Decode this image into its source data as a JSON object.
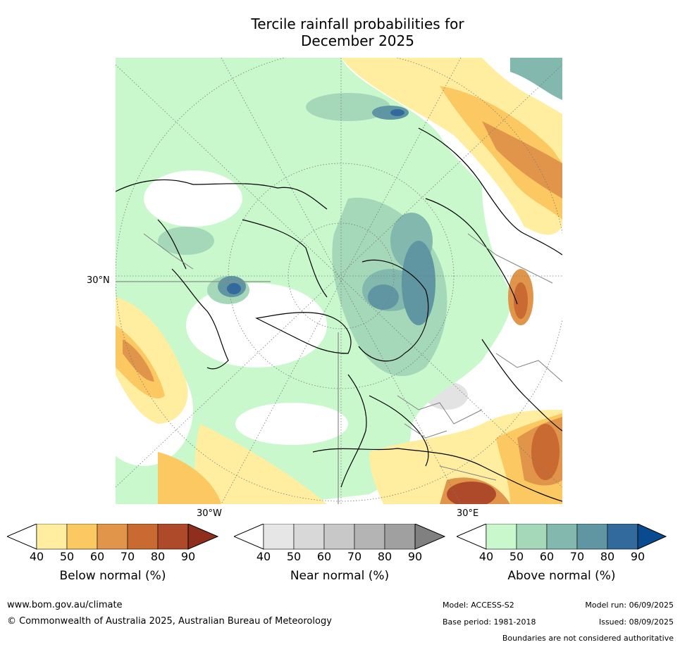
{
  "title": {
    "line1": "Tercile rainfall probabilities for",
    "line2": "December 2025"
  },
  "map": {
    "labels": {
      "lat_label": "30°N",
      "lon_label_west": "30°W",
      "lon_label_east": "30°E"
    },
    "colors": {
      "ocean_base": "#ffffff",
      "coast": "#000000",
      "borders": "#808080",
      "graticule": "#7a7a7a"
    }
  },
  "legends": [
    {
      "title": "Below normal (%)",
      "ticks": [
        "40",
        "50",
        "60",
        "70",
        "80",
        "90"
      ],
      "colors": [
        "#ffeea0",
        "#fcc862",
        "#e0954a",
        "#c96a32",
        "#ae4a2a",
        "#8f2e1c"
      ]
    },
    {
      "title": "Near normal (%)",
      "ticks": [
        "40",
        "50",
        "60",
        "70",
        "80",
        "90"
      ],
      "colors": [
        "#e6e6e6",
        "#d8d8d8",
        "#c8c8c8",
        "#b4b4b4",
        "#a0a0a0",
        "#808080"
      ]
    },
    {
      "title": "Above normal (%)",
      "ticks": [
        "40",
        "50",
        "60",
        "70",
        "80",
        "90"
      ],
      "colors": [
        "#c8f8cc",
        "#a4d8b8",
        "#82b8ae",
        "#5f96a2",
        "#336a9e",
        "#0a4a8e"
      ]
    }
  ],
  "footer": {
    "url": "www.bom.gov.au/climate",
    "copyright": "© Commonwealth of Australia 2025, Australian Bureau of Meteorology",
    "model": "Model: ACCESS-S2",
    "base_period": "Base period: 1981-2018",
    "model_run": "Model run: 06/09/2025",
    "issued": "Issued: 08/09/2025",
    "disclaimer": "Boundaries are not considered authoritative"
  }
}
